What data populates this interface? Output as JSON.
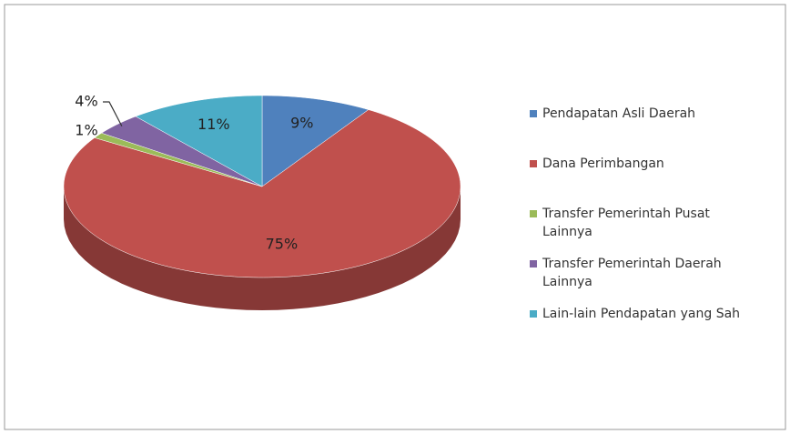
{
  "chart_data": {
    "type": "pie",
    "categories": [
      "Pendapatan Asli Daerah",
      "Dana Perimbangan",
      "Transfer Pemerintah Pusat Lainnya",
      "Transfer Pemerintah Daerah Lainnya",
      "Lain-lain Pendapatan yang Sah"
    ],
    "values": [
      9,
      75,
      1,
      4,
      11
    ],
    "value_labels": [
      "9%",
      "75%",
      "1%",
      "4%",
      "11%"
    ],
    "colors": [
      "#4f81bd",
      "#c0504d",
      "#9bbb59",
      "#8064a2",
      "#4bacc6"
    ],
    "legend": "right"
  }
}
